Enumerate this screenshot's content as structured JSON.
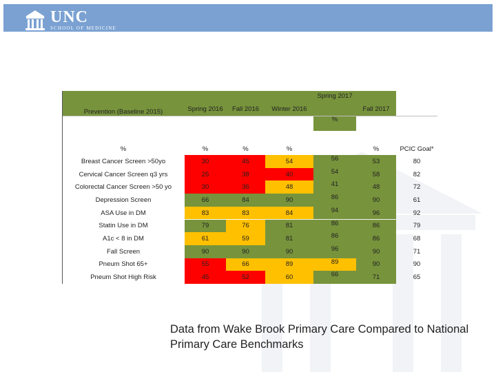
{
  "header": {
    "logo_text": "UNC",
    "logo_subtext": "SCHOOL OF MEDICINE",
    "banner_color": "#7aa1d2"
  },
  "table": {
    "row_header": "Prevention (Baseline 2015)",
    "columns": [
      "Spring 2016",
      "Fall 2016",
      "Winter 2016",
      "Spring 2017",
      "Fall 2017"
    ],
    "pct_subrow_mark": "%",
    "units_row": [
      "%",
      "%",
      "%",
      "%",
      "",
      "%",
      "PCIC Goal*"
    ],
    "rows": [
      {
        "label": "Breast Cancer Screen >50yo",
        "values": [
          "30",
          "45",
          "54",
          "56",
          "53",
          "80"
        ],
        "colors": [
          "r",
          "r",
          "y",
          "g",
          "g",
          ""
        ]
      },
      {
        "label": "Cervical Cancer Screen q3 yrs",
        "values": [
          "25",
          "38",
          "40",
          "54",
          "58",
          "82"
        ],
        "colors": [
          "r",
          "r",
          "r",
          "g",
          "g",
          ""
        ]
      },
      {
        "label": "Colorectal Cancer Screen >50 yo",
        "values": [
          "30",
          "36",
          "48",
          "41",
          "48",
          "72"
        ],
        "colors": [
          "r",
          "r",
          "y",
          "g",
          "g",
          ""
        ]
      },
      {
        "label": "Depression Screen",
        "values": [
          "66",
          "84",
          "90",
          "86",
          "90",
          "61"
        ],
        "colors": [
          "g",
          "g",
          "g",
          "g",
          "g",
          ""
        ]
      },
      {
        "label": "ASA Use in DM",
        "values": [
          "83",
          "83",
          "84",
          "94",
          "96",
          "92"
        ],
        "colors": [
          "y",
          "y",
          "y",
          "g",
          "g",
          ""
        ]
      },
      {
        "label": "Statin Use in DM",
        "values": [
          "79",
          "76",
          "81",
          "86",
          "86",
          "79"
        ],
        "colors": [
          "g",
          "y",
          "g",
          "g",
          "g",
          ""
        ]
      },
      {
        "label": "A1c < 8 in DM",
        "values": [
          "61",
          "59",
          "81",
          "86",
          "86",
          "68"
        ],
        "colors": [
          "y",
          "y",
          "g",
          "g",
          "g",
          ""
        ]
      },
      {
        "label": "Fall Screen",
        "values": [
          "90",
          "90",
          "90",
          "96",
          "90",
          "71"
        ],
        "colors": [
          "g",
          "g",
          "g",
          "g",
          "g",
          ""
        ]
      },
      {
        "label": "Pneum Shot 65+",
        "values": [
          "55",
          "66",
          "89",
          "89",
          "90",
          "90"
        ],
        "colors": [
          "r",
          "y",
          "y",
          "y",
          "g",
          ""
        ]
      },
      {
        "label": "Pneum Shot High Risk",
        "values": [
          "45",
          "52",
          "60",
          "66",
          "71",
          "65"
        ],
        "colors": [
          "r",
          "r",
          "y",
          "g",
          "g",
          ""
        ]
      }
    ]
  },
  "caption": "Data from Wake Brook Primary Care Compared to National Primary Care Benchmarks"
}
